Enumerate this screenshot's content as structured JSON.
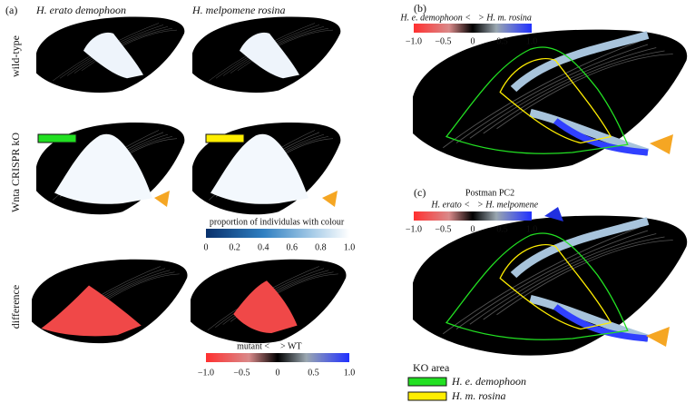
{
  "panel_a": {
    "label": "(a)",
    "columns": [
      "H. erato demophoon",
      "H. melpomene rosina"
    ],
    "rows": [
      "wild-type",
      "Wnta CRISPR kO",
      "difference"
    ],
    "colorbar": {
      "title": "proportion of individulas with colour",
      "ticks": [
        "0",
        "0.2",
        "0.4",
        "0.6",
        "0.8",
        "1.0"
      ]
    },
    "diff_colorbar": {
      "left": "mutant <",
      "right": "> WT",
      "ticks": [
        "−1.0",
        "−0.5",
        "0",
        "0.5",
        "1.0"
      ]
    }
  },
  "panel_b": {
    "label": "(b)",
    "left": "H. e. demophoon <",
    "right": "> H. m. rosina",
    "ticks": [
      "−1.0",
      "−0.5",
      "0",
      "0.5",
      "1.0"
    ]
  },
  "panel_c": {
    "label": "(c)",
    "title": "Postman PC2",
    "left": "H. erato <",
    "right": "> H. melpomene",
    "ticks": [
      "−1.0",
      "−0.5",
      "0",
      "0.5",
      "1.0"
    ]
  },
  "legend": {
    "title": "KO area",
    "items": [
      "H. e. demophoon",
      "H. m. rosina"
    ]
  }
}
